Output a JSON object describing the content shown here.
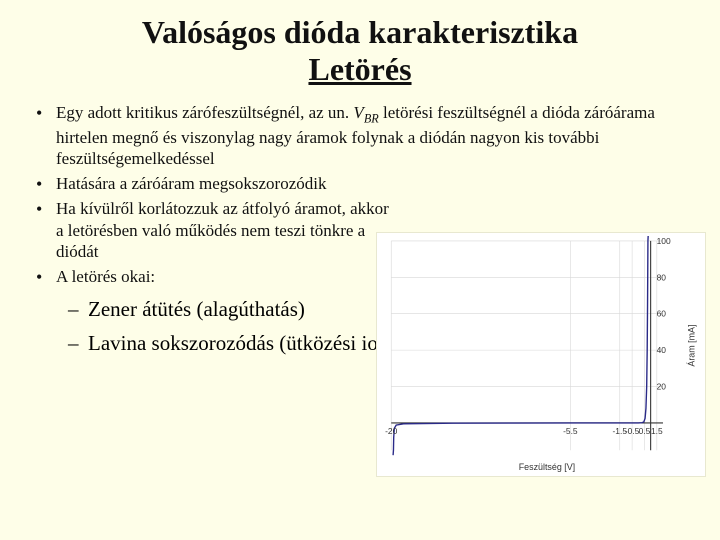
{
  "title_line1": "Valóságos dióda karakterisztika",
  "title_line2": "Letörés",
  "bullets": {
    "b1_pre": "Egy adott kritikus zárófeszültségnél, az un. ",
    "b1_var": "V",
    "b1_sub": "BR",
    "b1_post": " letörési feszültségnél a dióda záróárama hirtelen megnő és viszonylag nagy áramok folynak a diódán nagyon kis további feszültségemelkedéssel",
    "b2": "Hatására a záróáram megsokszorozódik",
    "b3": "Ha kívülről korlátozzuk az átfolyó áramot, akkor a letörésben való működés nem teszi tönkre a diódát",
    "b4": "A letörés okai:"
  },
  "sublist": {
    "s1": "Zener átütés (alagúthatás)",
    "s2": "Lavina sokszorozódás (ütközési ionizáció)"
  },
  "chart": {
    "type": "line",
    "x_axis_label": "Feszültség [V]",
    "y_axis_label": "Áram [mA]",
    "background_color": "#ffffff",
    "axis_color": "#333333",
    "grid_color": "#d8d8d8",
    "curve_color": "#2a2a88",
    "curve_width": 1.4,
    "xlim": [
      -20,
      2
    ],
    "ylim": [
      -15,
      100
    ],
    "y_axis_x": 1.0,
    "x_axis_y": 0,
    "x_ticks": [
      {
        "v": -20,
        "label": "-20"
      },
      {
        "v": -5.5,
        "label": "-5.5"
      },
      {
        "v": -1.5,
        "label": "-1.5"
      },
      {
        "v": -0.5,
        "label": "-0.5"
      },
      {
        "v": 0.5,
        "label": "0.5"
      },
      {
        "v": 1.5,
        "label": "1.5"
      }
    ],
    "y_ticks": [
      {
        "v": 20,
        "label": "20"
      },
      {
        "v": 40,
        "label": "40"
      },
      {
        "v": 60,
        "label": "60"
      },
      {
        "v": 80,
        "label": "80"
      },
      {
        "v": 100,
        "label": "100"
      }
    ],
    "curve_points": [
      [
        -19.85,
        -200
      ],
      [
        -19.82,
        -15
      ],
      [
        -19.8,
        -8
      ],
      [
        -19.75,
        -3
      ],
      [
        -19.6,
        -1.2
      ],
      [
        -19.0,
        -0.5
      ],
      [
        -15.0,
        -0.15
      ],
      [
        -10.0,
        -0.08
      ],
      [
        -5.0,
        -0.04
      ],
      [
        -1.0,
        -0.01
      ],
      [
        0.0,
        0.0
      ],
      [
        0.3,
        0.1
      ],
      [
        0.45,
        0.6
      ],
      [
        0.55,
        2.5
      ],
      [
        0.62,
        8
      ],
      [
        0.68,
        20
      ],
      [
        0.72,
        40
      ],
      [
        0.75,
        65
      ],
      [
        0.78,
        100
      ],
      [
        0.8,
        200
      ]
    ]
  }
}
